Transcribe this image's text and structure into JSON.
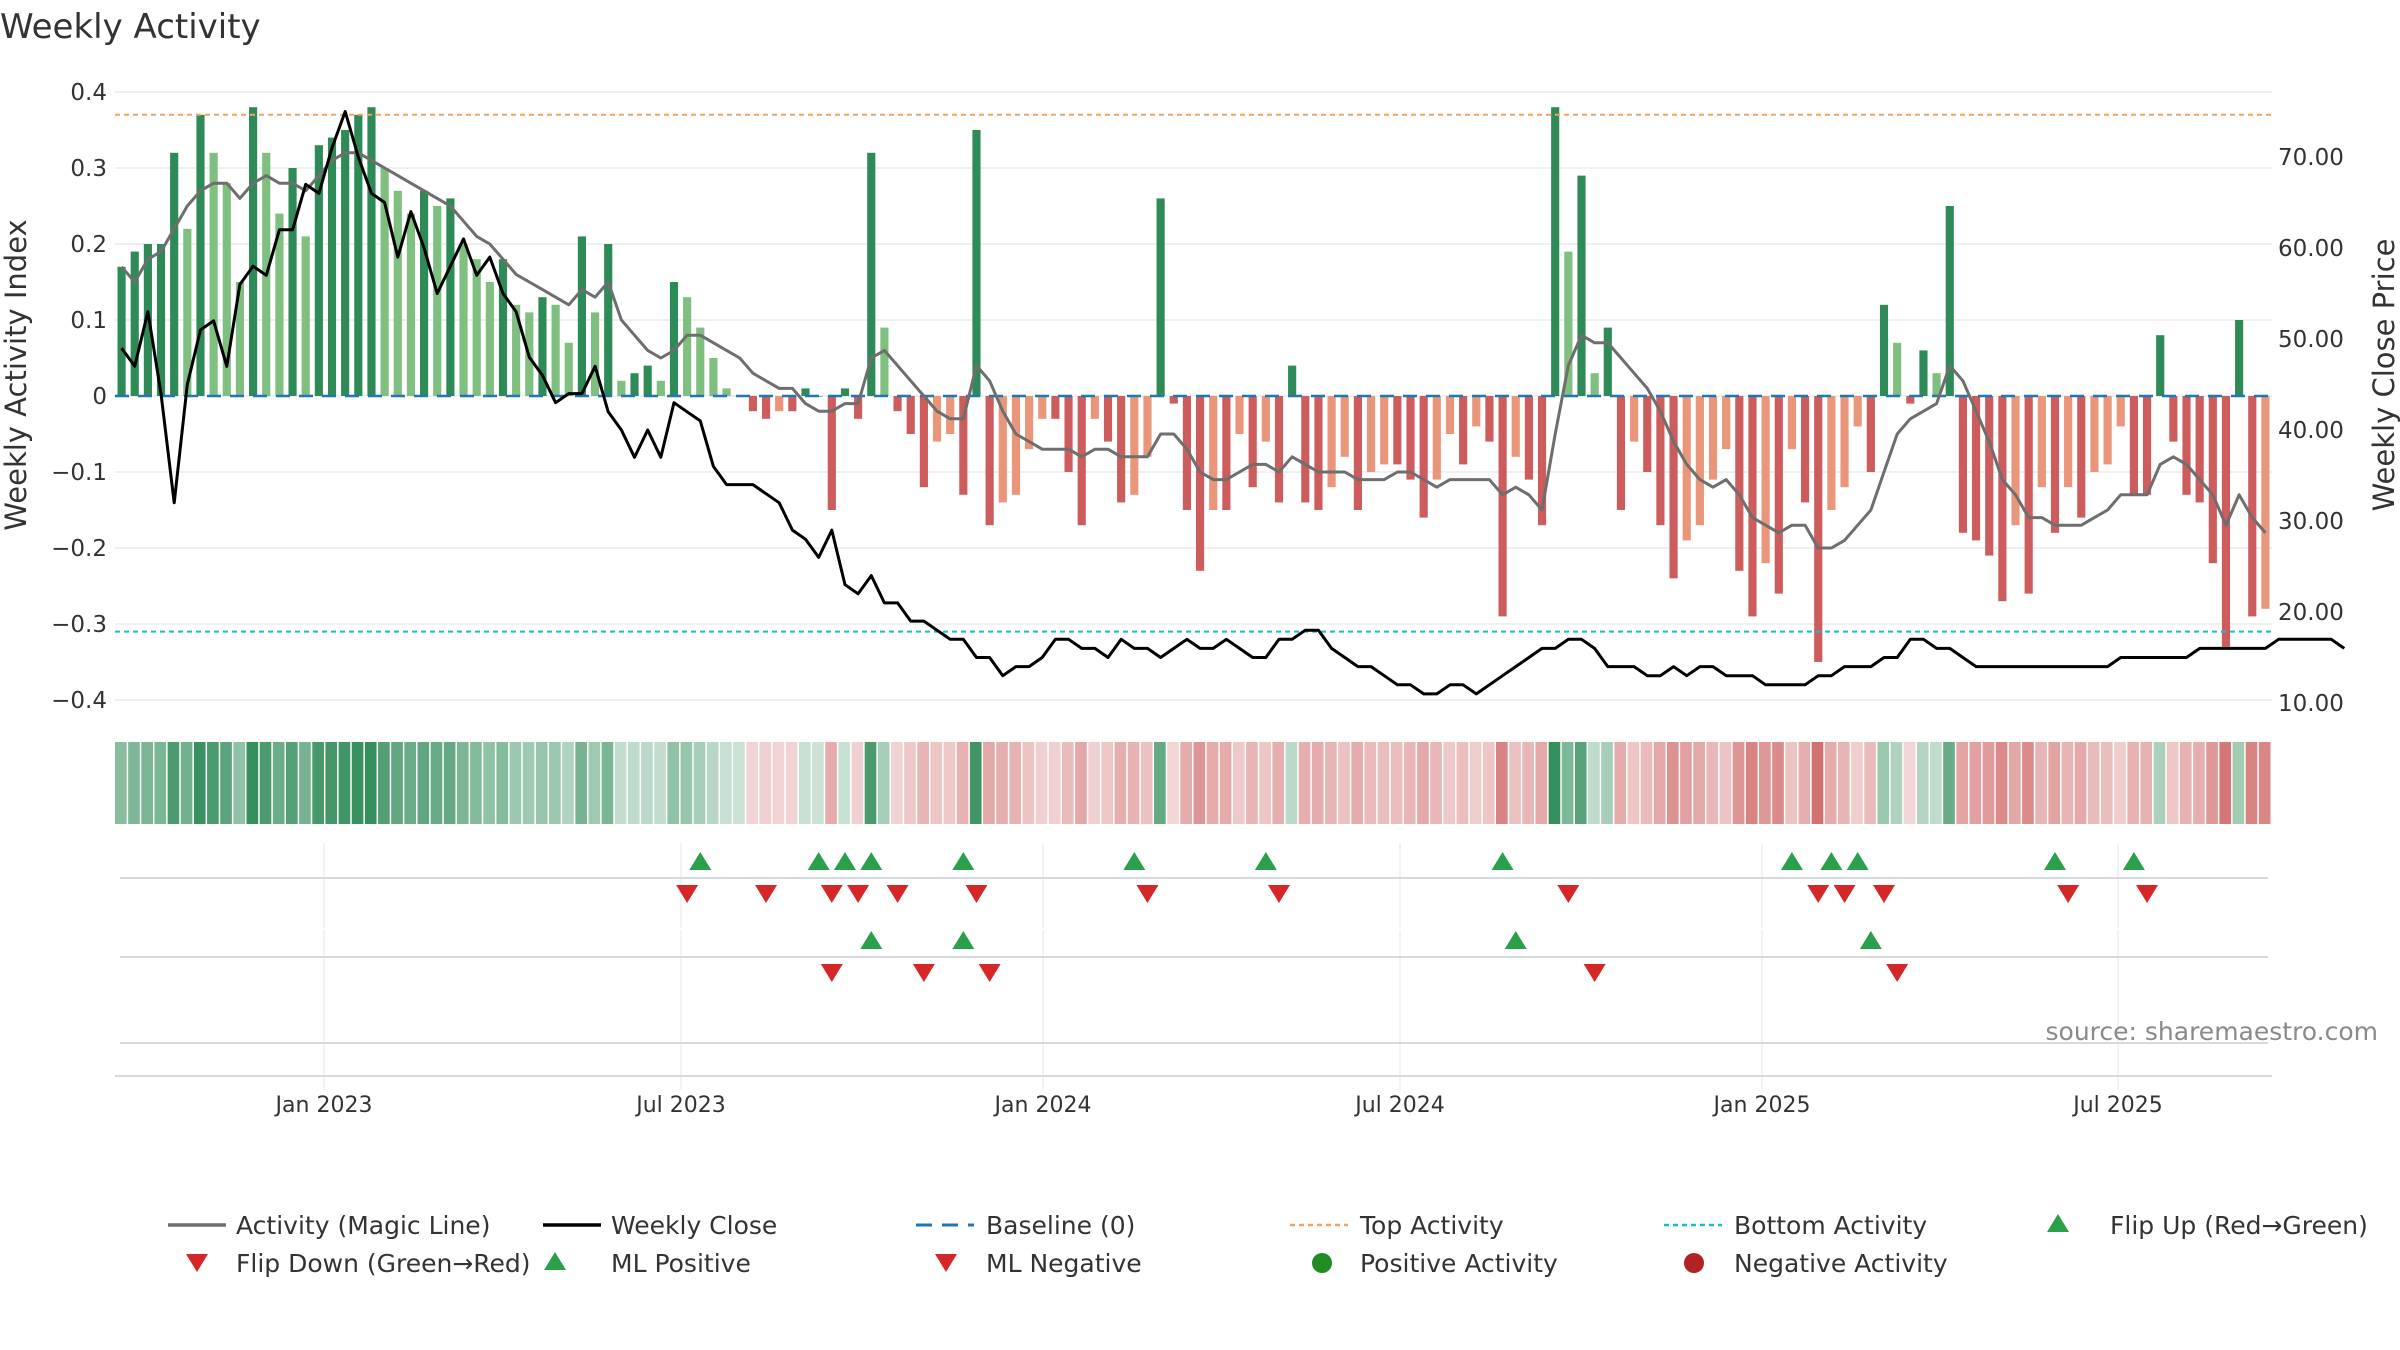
{
  "chart_data": {
    "type": "bar",
    "title": "Weekly Activity",
    "ylabel": "Weekly Activity Index",
    "y2label": "Weekly Close Price",
    "ylim": [
      -0.4,
      0.4
    ],
    "y2lim": [
      10,
      80
    ],
    "yticks": [
      "0.4",
      "0.3",
      "0.2",
      "0.1",
      "0",
      "−0.1",
      "−0.2",
      "−0.3",
      "−0.4"
    ],
    "y2ticks": [
      "70.00",
      "60.00",
      "50.00",
      "40.00",
      "30.00",
      "20.00",
      "10.00"
    ],
    "xticks": [
      "Jan 2023",
      "Jul 2023",
      "Jan 2024",
      "Jul 2024",
      "Jan 2025",
      "Jul 2025"
    ],
    "top_activity": 0.37,
    "bottom_activity": -0.31,
    "source": "source: sharemaestro.com",
    "activity": [
      0.17,
      0.19,
      0.2,
      0.2,
      0.32,
      0.22,
      0.37,
      0.32,
      0.28,
      0.15,
      0.38,
      0.32,
      0.24,
      0.3,
      0.21,
      0.33,
      0.34,
      0.35,
      0.37,
      0.38,
      0.3,
      0.27,
      0.24,
      0.27,
      0.25,
      0.26,
      0.2,
      0.18,
      0.15,
      0.18,
      0.12,
      0.11,
      0.13,
      0.12,
      0.07,
      0.21,
      0.11,
      0.2,
      0.02,
      0.03,
      0.04,
      0.02,
      0.15,
      0.13,
      0.09,
      0.05,
      0.01,
      0.0,
      -0.02,
      -0.03,
      -0.02,
      -0.02,
      0.01,
      0.0,
      -0.15,
      0.01,
      -0.03,
      0.32,
      0.09,
      -0.02,
      -0.05,
      -0.12,
      -0.06,
      -0.05,
      -0.13,
      0.35,
      -0.17,
      -0.14,
      -0.13,
      -0.07,
      -0.03,
      -0.03,
      -0.1,
      -0.17,
      -0.03,
      -0.06,
      -0.14,
      -0.13,
      -0.08,
      0.26,
      -0.01,
      -0.15,
      -0.23,
      -0.15,
      -0.15,
      -0.05,
      -0.12,
      -0.06,
      -0.14,
      0.04,
      -0.14,
      -0.15,
      -0.12,
      -0.08,
      -0.15,
      -0.1,
      -0.09,
      -0.09,
      -0.11,
      -0.16,
      -0.11,
      -0.05,
      -0.09,
      -0.04,
      -0.06,
      -0.29,
      -0.08,
      -0.11,
      -0.17,
      0.38,
      0.19,
      0.29,
      0.03,
      0.09,
      -0.15,
      -0.06,
      -0.1,
      -0.17,
      -0.24,
      -0.19,
      -0.17,
      -0.11,
      -0.07,
      -0.23,
      -0.29,
      -0.22,
      -0.26,
      -0.07,
      -0.14,
      -0.35,
      -0.15,
      -0.12,
      -0.04,
      -0.1,
      0.12,
      0.07,
      -0.01,
      0.06,
      0.03,
      0.25,
      -0.18,
      -0.19,
      -0.21,
      -0.27,
      -0.17,
      -0.26,
      -0.12,
      -0.18,
      -0.12,
      -0.16,
      -0.1,
      -0.09,
      -0.04,
      -0.13,
      -0.13,
      0.08,
      -0.06,
      -0.13,
      -0.14,
      -0.22,
      -0.33,
      0.1,
      -0.29,
      -0.28
    ],
    "weekly_close": [
      49,
      47,
      53,
      44,
      32,
      45,
      51,
      52,
      47,
      56,
      58,
      57,
      62,
      62,
      67,
      66,
      71,
      75,
      70,
      66,
      65,
      59,
      64,
      60,
      55,
      58,
      61,
      57,
      59,
      55,
      53,
      48,
      46,
      43,
      44,
      44,
      47,
      42,
      40,
      37,
      40,
      37,
      43,
      42,
      41,
      36,
      34,
      34,
      34,
      33,
      32,
      29,
      28,
      26,
      29,
      23,
      22,
      24,
      21,
      21,
      19,
      19,
      18,
      17,
      17,
      15,
      15,
      13,
      14,
      14,
      15,
      17,
      17,
      16,
      16,
      15,
      17,
      16,
      16,
      15,
      16,
      17,
      16,
      16,
      17,
      16,
      15,
      15,
      17,
      17,
      18,
      18,
      16,
      15,
      14,
      14,
      13,
      12,
      12,
      11,
      11,
      12,
      12,
      11,
      12,
      13,
      14,
      15,
      16,
      16,
      17,
      17,
      16,
      14,
      14,
      14,
      13,
      13,
      14,
      13,
      14,
      14,
      13,
      13,
      13,
      12,
      12,
      12,
      12,
      13,
      13,
      14,
      14,
      14,
      15,
      15,
      17,
      17,
      16,
      16,
      15,
      14,
      14,
      14,
      14,
      14,
      14,
      14,
      14,
      14,
      14,
      14,
      15,
      15,
      15,
      15,
      15,
      15,
      16,
      16,
      16,
      16,
      16,
      16,
      17,
      17,
      17,
      17,
      17,
      16
    ],
    "magic_line": [
      0.17,
      0.15,
      0.18,
      0.19,
      0.22,
      0.25,
      0.27,
      0.28,
      0.28,
      0.26,
      0.28,
      0.29,
      0.28,
      0.28,
      0.27,
      0.29,
      0.31,
      0.32,
      0.32,
      0.31,
      0.3,
      0.29,
      0.28,
      0.27,
      0.26,
      0.25,
      0.23,
      0.21,
      0.2,
      0.18,
      0.16,
      0.15,
      0.14,
      0.13,
      0.12,
      0.14,
      0.13,
      0.15,
      0.1,
      0.08,
      0.06,
      0.05,
      0.06,
      0.08,
      0.08,
      0.07,
      0.06,
      0.05,
      0.03,
      0.02,
      0.01,
      0.01,
      -0.01,
      -0.02,
      -0.02,
      -0.01,
      -0.01,
      0.05,
      0.06,
      0.04,
      0.02,
      0.0,
      -0.02,
      -0.03,
      -0.03,
      0.04,
      0.02,
      -0.02,
      -0.05,
      -0.06,
      -0.07,
      -0.07,
      -0.07,
      -0.08,
      -0.07,
      -0.07,
      -0.08,
      -0.08,
      -0.08,
      -0.05,
      -0.05,
      -0.07,
      -0.1,
      -0.11,
      -0.11,
      -0.1,
      -0.09,
      -0.09,
      -0.1,
      -0.08,
      -0.09,
      -0.1,
      -0.1,
      -0.1,
      -0.11,
      -0.11,
      -0.11,
      -0.1,
      -0.1,
      -0.11,
      -0.12,
      -0.11,
      -0.11,
      -0.11,
      -0.11,
      -0.13,
      -0.12,
      -0.13,
      -0.15,
      -0.05,
      0.04,
      0.08,
      0.07,
      0.07,
      0.05,
      0.03,
      0.01,
      -0.02,
      -0.06,
      -0.09,
      -0.11,
      -0.12,
      -0.11,
      -0.13,
      -0.16,
      -0.17,
      -0.18,
      -0.17,
      -0.17,
      -0.2,
      -0.2,
      -0.19,
      -0.17,
      -0.15,
      -0.1,
      -0.05,
      -0.03,
      -0.02,
      -0.01,
      0.04,
      0.02,
      -0.02,
      -0.06,
      -0.11,
      -0.13,
      -0.16,
      -0.16,
      -0.17,
      -0.17,
      -0.17,
      -0.16,
      -0.15,
      -0.13,
      -0.13,
      -0.13,
      -0.09,
      -0.08,
      -0.09,
      -0.11,
      -0.13,
      -0.17,
      -0.13,
      -0.16,
      -0.18
    ],
    "flip_up_weeks": [
      44,
      53,
      55,
      57,
      64,
      77,
      87,
      105,
      127,
      130,
      132,
      147,
      153
    ],
    "flip_down_weeks": [
      43,
      49,
      54,
      56,
      59,
      65,
      78,
      88,
      110,
      129,
      131,
      134,
      148,
      154
    ],
    "ml_positive_weeks": [
      57,
      64,
      106,
      133
    ],
    "ml_negative_weeks": [
      54,
      61,
      66,
      112,
      135
    ],
    "legend": [
      "Activity (Magic Line)",
      "Weekly Close",
      "Baseline (0)",
      "Top Activity",
      "Bottom Activity",
      "Flip Up (Red→Green)",
      "Flip Down (Green→Red)",
      "ML Positive",
      "ML Negative",
      "Positive Activity",
      "Negative Activity"
    ]
  },
  "colors": {
    "pos_strong": "#2e8b57",
    "pos_light": "#7fbf7f",
    "neg_strong": "#cd5c5c",
    "neg_light": "#e9967a",
    "magic_line": "#6e6e6e",
    "close_line": "#000000",
    "baseline": "#1f77b4",
    "top_line": "#f4a460",
    "bottom_line": "#17becf",
    "flip_up": "#2aa04a",
    "flip_down": "#d62728",
    "pos_marker": "#228b22",
    "neg_marker": "#b22222"
  }
}
